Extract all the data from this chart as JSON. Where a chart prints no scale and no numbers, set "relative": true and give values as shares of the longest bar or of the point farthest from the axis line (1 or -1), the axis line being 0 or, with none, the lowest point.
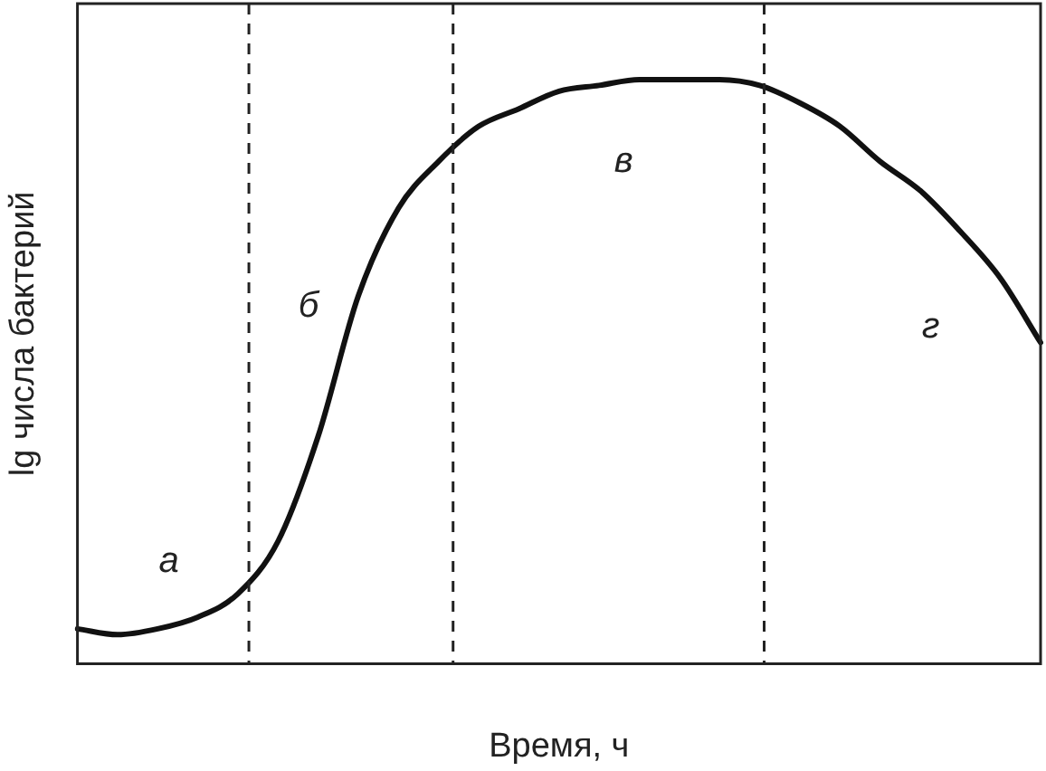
{
  "chart_data": {
    "type": "line",
    "relative": true,
    "xlabel": "Время, ч",
    "ylabel": "lg числа бактерий",
    "color": "#111111",
    "marker": "none",
    "line_style": "solid",
    "grid": false,
    "legend": false,
    "categories": [
      null,
      null,
      null,
      null,
      null,
      null,
      null,
      null,
      null,
      null,
      null,
      null,
      null,
      null,
      null,
      null,
      null,
      null,
      null,
      null,
      null,
      null,
      null,
      null,
      null
    ],
    "values": [
      0.06,
      0.05,
      0.06,
      0.08,
      0.12,
      0.21,
      0.39,
      0.63,
      0.78,
      0.86,
      0.92,
      0.95,
      0.98,
      0.99,
      1.0,
      1.0,
      1.0,
      0.99,
      0.96,
      0.92,
      0.86,
      0.81,
      0.74,
      0.66,
      0.55
    ],
    "annotations": [
      "а",
      "б",
      "в",
      "г"
    ]
  }
}
